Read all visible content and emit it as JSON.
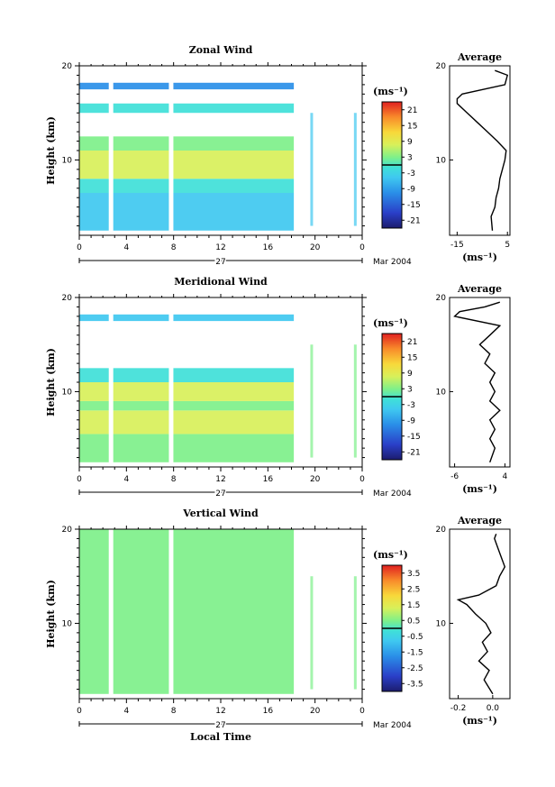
{
  "figure": {
    "date_label": "Mar 2004",
    "day_label": "27",
    "xlabel": "Local Time",
    "time_ticks": [
      "0",
      "4",
      "8",
      "12",
      "16",
      "20",
      "0"
    ],
    "height_ticks": [
      "10",
      "20"
    ],
    "units": "(ms⁻¹)",
    "avg_title": "Average"
  },
  "chart_data": [
    {
      "type": "heatmap",
      "title": "Zonal Wind",
      "ylabel": "Height (km)",
      "xlabel": "",
      "x_range": [
        0,
        24
      ],
      "ylim": [
        2,
        20
      ],
      "colorbar": {
        "ticks": [
          "21",
          "15",
          "9",
          "3",
          "-3",
          "-9",
          "-15",
          "-21"
        ],
        "range": [
          -24,
          24
        ]
      },
      "data_cutoff_hours": 18.2,
      "layers": [
        {
          "from_km": 2.5,
          "to_km": 6.5,
          "value": -9
        },
        {
          "from_km": 6.5,
          "to_km": 8.0,
          "value": -3
        },
        {
          "from_km": 8.0,
          "to_km": 11.0,
          "value": 5
        },
        {
          "from_km": 11.0,
          "to_km": 12.5,
          "value": 0
        },
        {
          "from_km": 15.0,
          "to_km": 16.0,
          "value": -2
        },
        {
          "from_km": 17.5,
          "to_km": 18.2,
          "value": -18
        }
      ],
      "average": {
        "title": "Average",
        "xlabel": "(ms⁻¹)",
        "xticks": [
          "-15",
          "5"
        ],
        "xlim": [
          -18,
          6
        ],
        "height_km": [
          2.5,
          4,
          5,
          6,
          7,
          8,
          9,
          10,
          11,
          12,
          13,
          14,
          15,
          16,
          16.5,
          17,
          18,
          19,
          19.5
        ],
        "values": [
          -1,
          -1.5,
          0,
          0.5,
          1.5,
          2,
          3,
          4,
          4.5,
          1,
          -3,
          -7,
          -11,
          -15,
          -15,
          -13,
          4,
          5,
          0
        ]
      }
    },
    {
      "type": "heatmap",
      "title": "Meridional Wind",
      "ylabel": "Height (km)",
      "xlabel": "",
      "x_range": [
        0,
        24
      ],
      "ylim": [
        2,
        20
      ],
      "colorbar": {
        "ticks": [
          "21",
          "15",
          "9",
          "3",
          "-3",
          "-9",
          "-15",
          "-21"
        ],
        "range": [
          -24,
          24
        ]
      },
      "data_cutoff_hours": 18.2,
      "layers": [
        {
          "from_km": 2.5,
          "to_km": 5.5,
          "value": 0
        },
        {
          "from_km": 5.5,
          "to_km": 8.0,
          "value": 5
        },
        {
          "from_km": 8.0,
          "to_km": 9.0,
          "value": 0
        },
        {
          "from_km": 9.0,
          "to_km": 11.0,
          "value": 4
        },
        {
          "from_km": 11.0,
          "to_km": 12.5,
          "value": -3
        },
        {
          "from_km": 17.5,
          "to_km": 18.2,
          "value": -6
        }
      ],
      "average": {
        "title": "Average",
        "xlabel": "(ms⁻¹)",
        "xticks": [
          "-6",
          "4"
        ],
        "xlim": [
          -7,
          5
        ],
        "height_km": [
          2.5,
          4,
          5,
          6,
          7,
          8,
          9,
          10,
          11,
          12,
          13,
          14,
          15,
          16,
          17,
          18,
          18.5,
          19,
          19.5
        ],
        "values": [
          1,
          2,
          1,
          2,
          1,
          3,
          1,
          2,
          1,
          2,
          0,
          1,
          -1,
          1,
          3,
          -6,
          -5,
          0,
          3
        ]
      }
    },
    {
      "type": "heatmap",
      "title": "Vertical Wind",
      "ylabel": "Height (km)",
      "xlabel": "Local Time",
      "x_range": [
        0,
        24
      ],
      "ylim": [
        2,
        20
      ],
      "colorbar": {
        "ticks": [
          "3.5",
          "2.5",
          "1.5",
          "0.5",
          "-0.5",
          "-1.5",
          "-2.5",
          "-3.5"
        ],
        "range": [
          -4,
          4
        ]
      },
      "data_cutoff_hours": 18.2,
      "layers": [
        {
          "from_km": 2.5,
          "to_km": 20.0,
          "value": 0.2
        }
      ],
      "average": {
        "title": "Average",
        "xlabel": "(ms⁻¹)",
        "xticks": [
          "-0.2",
          "0.0"
        ],
        "xlim": [
          -0.25,
          0.1
        ],
        "height_km": [
          2.5,
          4,
          5,
          6,
          7,
          8,
          9,
          10,
          11,
          12,
          12.5,
          13,
          14,
          15,
          16,
          17,
          18,
          19,
          19.5
        ],
        "values": [
          0.0,
          -0.05,
          -0.02,
          -0.08,
          -0.03,
          -0.06,
          -0.01,
          -0.04,
          -0.1,
          -0.15,
          -0.2,
          -0.08,
          0.02,
          0.04,
          0.07,
          0.05,
          0.03,
          0.01,
          0.02
        ]
      }
    }
  ]
}
